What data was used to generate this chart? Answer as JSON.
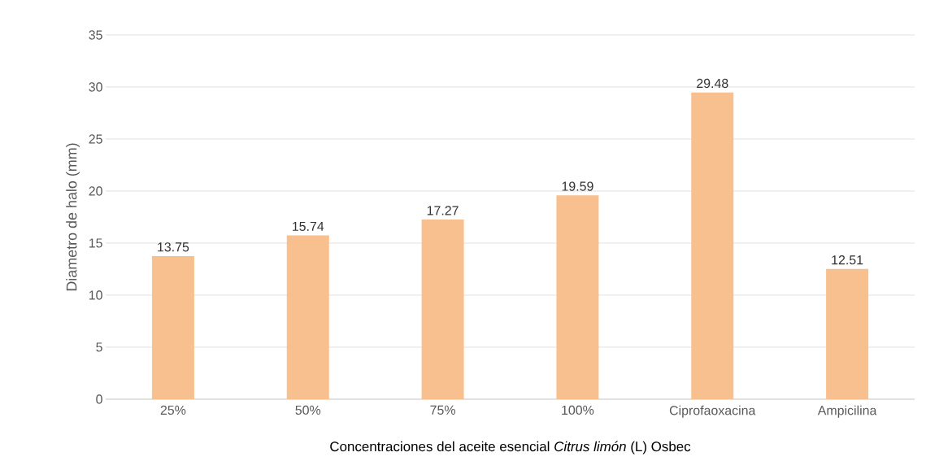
{
  "chart_data": {
    "type": "bar",
    "xlabel": "Concentraciones del aceite esencial *Citrus limón* (L) Osbec",
    "ylabel": "Diametro de halo (mm)",
    "categories": [
      "25%",
      "50%",
      "75%",
      "100%",
      "Ciprofaoxacina",
      "Ampicilina"
    ],
    "values": [
      13.75,
      15.74,
      17.27,
      19.59,
      29.48,
      12.51
    ],
    "color": "#f8c08f",
    "ylim": [
      0,
      35
    ],
    "yticks": [
      0,
      5,
      10,
      15,
      20,
      25,
      30,
      35
    ],
    "grid": "y",
    "data_labels": true
  }
}
